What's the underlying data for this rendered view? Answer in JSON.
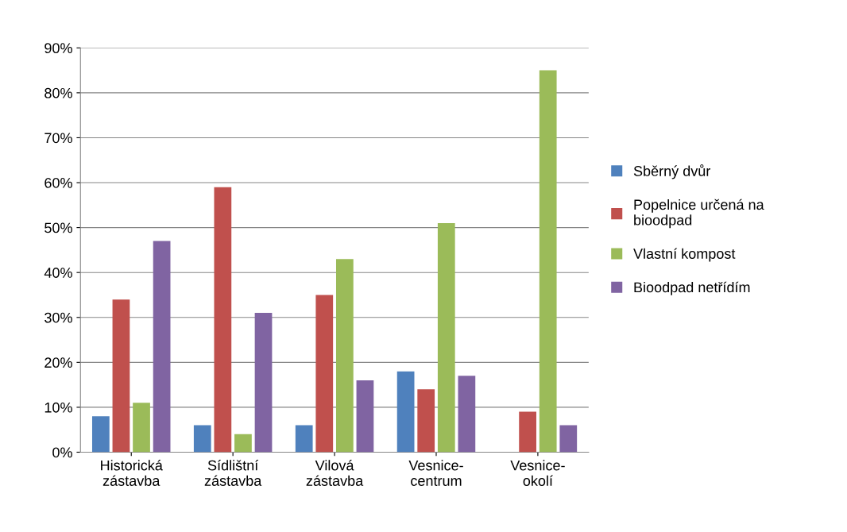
{
  "chart_data": {
    "type": "bar",
    "categories": [
      "Historická\nzástavba",
      "Sídlištní\nzástavba",
      "Vilová\nzástavba",
      "Vesnice-\ncentrum",
      "Vesnice-\nokolí"
    ],
    "series": [
      {
        "name": "Sběrný dvůr",
        "color": "#4f81bd",
        "values": [
          8,
          6,
          6,
          18,
          0
        ]
      },
      {
        "name": "Popelnice určená na\nbioodpad",
        "color": "#c0504d",
        "values": [
          34,
          59,
          35,
          14,
          9
        ]
      },
      {
        "name": "Vlastní kompost",
        "color": "#9bbb59",
        "values": [
          11,
          4,
          43,
          51,
          85
        ]
      },
      {
        "name": "Bioodpad netřídím",
        "color": "#8064a2",
        "values": [
          47,
          31,
          16,
          17,
          6
        ]
      }
    ],
    "ylim": [
      0,
      90
    ],
    "yticks": [
      {
        "value": 0,
        "label": "0%"
      },
      {
        "value": 10,
        "label": "10%"
      },
      {
        "value": 20,
        "label": "20%"
      },
      {
        "value": 30,
        "label": "30%"
      },
      {
        "value": 40,
        "label": "40%"
      },
      {
        "value": 50,
        "label": "50%"
      },
      {
        "value": 60,
        "label": "60%"
      },
      {
        "value": 70,
        "label": "70%"
      },
      {
        "value": 80,
        "label": "80%"
      },
      {
        "value": 90,
        "label": "90%"
      }
    ],
    "grid": "y",
    "legend": "right"
  }
}
